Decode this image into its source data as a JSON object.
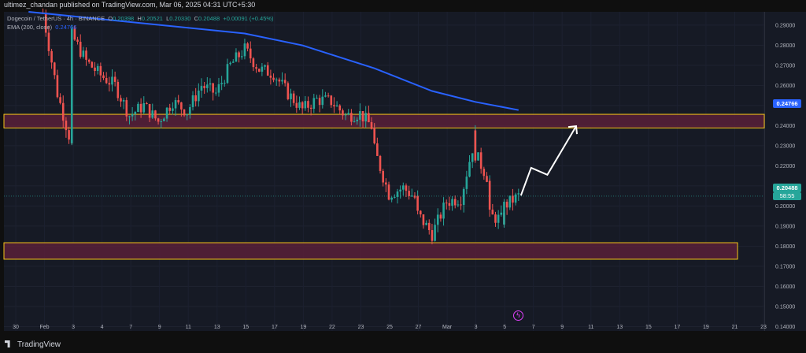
{
  "header": {
    "publisher_line": "ultimez_chandan published on TradingView.com, Mar 06, 2025 04:31 UTC+5:30"
  },
  "legend": {
    "symbol": "Dogecoin / TetherUS · 4h · BINANCE",
    "open_label": "O",
    "open": "0.20398",
    "high_label": "H",
    "high": "0.20521",
    "low_label": "L",
    "low": "0.20330",
    "close_label": "C",
    "close": "0.20488",
    "change": "+0.00091 (+0.45%)",
    "ema_label": "EMA (200, close)",
    "ema_value": "0.24766"
  },
  "price_axis": {
    "ticks": [
      "0.29000",
      "0.28000",
      "0.27000",
      "0.26000",
      "0.25000",
      "0.24000",
      "0.23000",
      "0.22000",
      "0.21000",
      "0.20000",
      "0.19000",
      "0.18000",
      "0.17000",
      "0.16000",
      "0.15000",
      "0.14000"
    ],
    "ema_tag": "0.24766",
    "price_tag": "0.20488",
    "countdown_tag": "58:55"
  },
  "time_axis": {
    "ticks": [
      "30",
      "Feb",
      "3",
      "4",
      "7",
      "9",
      "11",
      "13",
      "15",
      "17",
      "19",
      "22",
      "23",
      "25",
      "27",
      "Mar",
      "3",
      "5",
      "7",
      "9",
      "11",
      "13",
      "15",
      "17",
      "19",
      "21",
      "23"
    ]
  },
  "footer": {
    "brand": "TradingView"
  },
  "colors": {
    "up": "#26a69a",
    "down": "#ef5350",
    "ema": "#2962ff",
    "zone_border": "#f5c518",
    "zone_fill": "#5c1f3a",
    "background": "#161a25"
  },
  "icons": {
    "replay": "lightning-circle-icon"
  },
  "chart_data": {
    "type": "candlestick",
    "symbol": "DOGE/USDT",
    "timeframe": "4h",
    "price_range": [
      0.1378,
      0.2966
    ],
    "resistance_zone": [
      0.2388,
      0.2456
    ],
    "support_zone": [
      0.1735,
      0.1817
    ],
    "last_price": 0.20488,
    "ema_200_path": [
      [
        "Jan 31",
        0.2966
      ],
      [
        "Feb 15",
        0.2858
      ],
      [
        "Feb 19",
        0.2799
      ],
      [
        "Feb 24",
        0.2685
      ],
      [
        "Feb 28",
        0.2572
      ],
      [
        "Mar 3",
        0.2518
      ],
      [
        "Mar 6",
        0.2477
      ]
    ],
    "projection_path": [
      [
        "Mar 6",
        0.2052
      ],
      [
        "Mar 6",
        0.219
      ],
      [
        "Mar 8",
        0.2155
      ],
      [
        "Mar 10",
        0.2397
      ]
    ],
    "closes_path": [
      [
        "Feb 1",
        0.296
      ],
      [
        "Feb 2",
        0.256
      ],
      [
        "Feb 3",
        0.23
      ],
      [
        "Feb 3",
        0.285
      ],
      [
        "Feb 4",
        0.272
      ],
      [
        "Feb 5",
        0.265
      ],
      [
        "Feb 6",
        0.26
      ],
      [
        "Feb 7",
        0.245
      ],
      [
        "Feb 8",
        0.25
      ],
      [
        "Feb 9",
        0.242
      ],
      [
        "Feb 10",
        0.252
      ],
      [
        "Feb 11",
        0.247
      ],
      [
        "Feb 12",
        0.26
      ],
      [
        "Feb 13",
        0.256
      ],
      [
        "Feb 14",
        0.27
      ],
      [
        "Feb 15",
        0.278
      ],
      [
        "Feb 16",
        0.268
      ],
      [
        "Feb 17",
        0.266
      ],
      [
        "Feb 18",
        0.256
      ],
      [
        "Feb 19",
        0.248
      ],
      [
        "Feb 20",
        0.253
      ],
      [
        "Feb 21",
        0.252
      ],
      [
        "Feb 22",
        0.245
      ],
      [
        "Feb 23",
        0.246
      ],
      [
        "Feb 24",
        0.238
      ],
      [
        "Feb 24",
        0.228
      ],
      [
        "Feb 25",
        0.206
      ],
      [
        "Feb 26",
        0.209
      ],
      [
        "Feb 27",
        0.203
      ],
      [
        "Feb 27",
        0.196
      ],
      [
        "Feb 28",
        0.186
      ],
      [
        "Mar 1",
        0.202
      ],
      [
        "Mar 2",
        0.204
      ],
      [
        "Mar 3",
        0.235
      ],
      [
        "Mar 3",
        0.226
      ],
      [
        "Mar 4",
        0.212
      ],
      [
        "Mar 4",
        0.195
      ],
      [
        "Mar 5",
        0.193
      ],
      [
        "Mar 5",
        0.2
      ],
      [
        "Mar 6",
        0.2049
      ]
    ]
  }
}
